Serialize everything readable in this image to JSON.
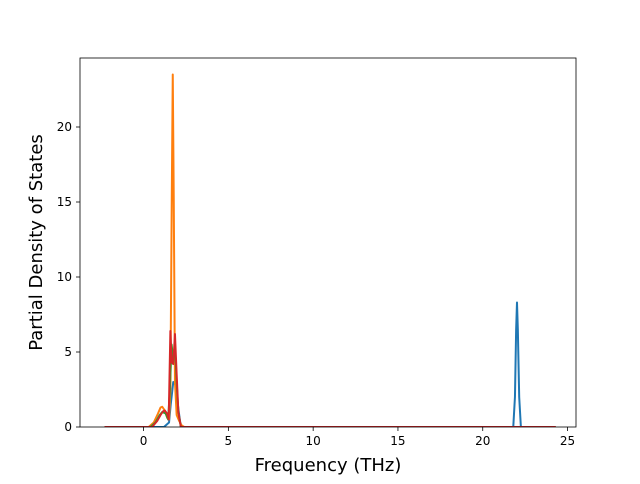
{
  "chart_data": {
    "type": "line",
    "title": "",
    "xlabel": "Frequency (THz)",
    "ylabel": "Partial Density of States",
    "xlim": [
      -3.75,
      25.5
    ],
    "ylim": [
      0,
      24.6
    ],
    "xticks": [
      0,
      5,
      10,
      15,
      20,
      25
    ],
    "yticks": [
      0,
      5,
      10,
      15,
      20
    ],
    "grid": false,
    "legend": "none",
    "series": [
      {
        "color": "#1f77b4",
        "x": [
          -2.3,
          1.2,
          1.5,
          1.6,
          1.75,
          1.9,
          2.05,
          2.2,
          2.4,
          21.8,
          21.9,
          21.97,
          22.02,
          22.07,
          22.15,
          22.25,
          24.3
        ],
        "y": [
          0,
          0,
          0.3,
          1.5,
          3.0,
          2.8,
          1.2,
          0,
          0,
          0,
          2.0,
          6.5,
          8.3,
          6.5,
          2.0,
          0,
          0
        ]
      },
      {
        "color": "#ff7f0e",
        "x": [
          -2.3,
          0.3,
          0.6,
          0.85,
          1.0,
          1.1,
          1.25,
          1.4,
          1.5,
          1.58,
          1.66,
          1.72,
          1.78,
          1.85,
          1.95,
          2.1,
          2.25,
          2.4,
          24.3
        ],
        "y": [
          0,
          0,
          0.3,
          0.9,
          1.3,
          1.35,
          1.1,
          0.6,
          0.5,
          2.5,
          15.0,
          23.5,
          15.0,
          3.0,
          0.8,
          0.4,
          0.1,
          0,
          0
        ]
      },
      {
        "color": "#2ca02c",
        "x": [
          -2.3,
          0.4,
          0.7,
          0.95,
          1.1,
          1.3,
          1.45,
          1.55,
          1.65,
          1.75,
          1.85,
          1.95,
          2.05,
          2.2,
          24.3
        ],
        "y": [
          0,
          0,
          0.3,
          0.8,
          1.0,
          0.9,
          0.5,
          2.5,
          5.5,
          4.5,
          5.5,
          3.0,
          1.0,
          0,
          0
        ]
      },
      {
        "color": "#d62728",
        "x": [
          -2.3,
          0.5,
          0.8,
          1.0,
          1.15,
          1.25,
          1.38,
          1.48,
          1.58,
          1.66,
          1.75,
          1.85,
          1.95,
          2.05,
          2.2,
          24.3
        ],
        "y": [
          0,
          0,
          0.4,
          0.8,
          1.05,
          1.1,
          0.9,
          0.5,
          6.4,
          4.3,
          4.2,
          6.2,
          3.5,
          1.0,
          0,
          0
        ]
      }
    ]
  }
}
